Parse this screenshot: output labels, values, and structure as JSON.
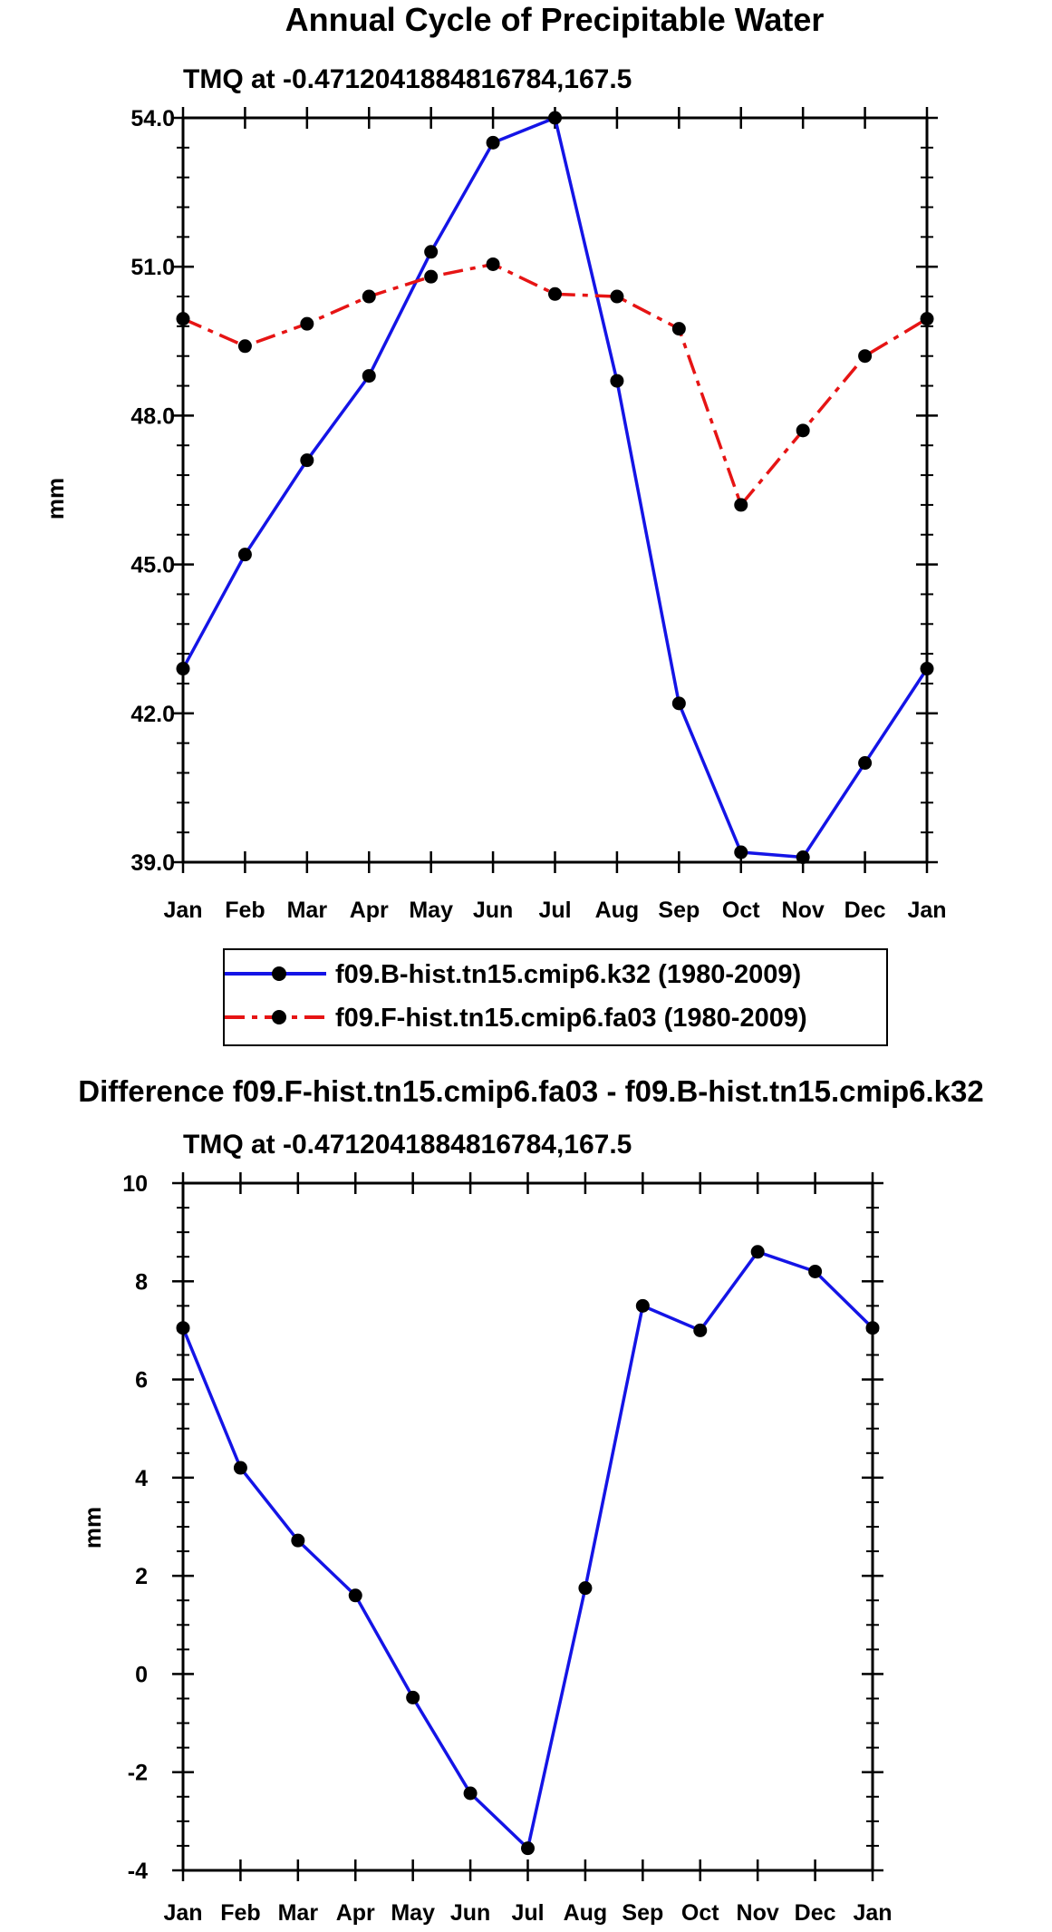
{
  "page_title": "Annual Cycle of Precipitable Water",
  "chart_data": [
    {
      "type": "line",
      "title": "Annual Cycle of Precipitable Water",
      "subtitle": "TMQ at -0.4712041884816784,167.5",
      "xlabel": "",
      "ylabel": "mm",
      "categories": [
        "Jan",
        "Feb",
        "Mar",
        "Apr",
        "May",
        "Jun",
        "Jul",
        "Aug",
        "Sep",
        "Oct",
        "Nov",
        "Dec",
        "Jan"
      ],
      "ylim": [
        39.0,
        54.0
      ],
      "yticks": [
        "39.0",
        "42.0",
        "45.0",
        "48.0",
        "51.0",
        "54.0"
      ],
      "ytick_values": [
        39,
        42,
        45,
        48,
        51,
        54
      ],
      "series": [
        {
          "name": "f09.B-hist.tn15.cmip6.k32 (1980-2009)",
          "color": "#1414e6",
          "style": "solid",
          "values": [
            42.9,
            45.2,
            47.1,
            48.8,
            51.3,
            53.5,
            54.0,
            48.7,
            42.2,
            39.2,
            39.1,
            41.0,
            42.9
          ]
        },
        {
          "name": "f09.F-hist.tn15.cmip6.fa03 (1980-2009)",
          "color": "#e61414",
          "style": "dashed",
          "values": [
            49.95,
            49.4,
            49.85,
            50.4,
            50.8,
            51.05,
            50.45,
            50.4,
            49.75,
            46.2,
            47.7,
            49.2,
            49.95
          ]
        }
      ],
      "legend_position": "bottom"
    },
    {
      "type": "line",
      "title": "Difference f09.F-hist.tn15.cmip6.fa03 - f09.B-hist.tn15.cmip6.k32",
      "subtitle": "TMQ at -0.4712041884816784,167.5",
      "xlabel": "",
      "ylabel": "mm",
      "categories": [
        "Jan",
        "Feb",
        "Mar",
        "Apr",
        "May",
        "Jun",
        "Jul",
        "Aug",
        "Sep",
        "Oct",
        "Nov",
        "Dec",
        "Jan"
      ],
      "ylim": [
        -4,
        10
      ],
      "yticks": [
        "-4",
        "-2",
        "0",
        "2",
        "4",
        "6",
        "8",
        "10"
      ],
      "ytick_values": [
        -4,
        -2,
        0,
        2,
        4,
        6,
        8,
        10
      ],
      "series": [
        {
          "name": "Difference",
          "color": "#1414e6",
          "style": "solid",
          "values": [
            7.05,
            4.2,
            2.72,
            1.6,
            -0.48,
            -2.43,
            -3.55,
            1.75,
            7.5,
            7.0,
            8.6,
            8.2,
            7.05
          ]
        }
      ]
    }
  ]
}
